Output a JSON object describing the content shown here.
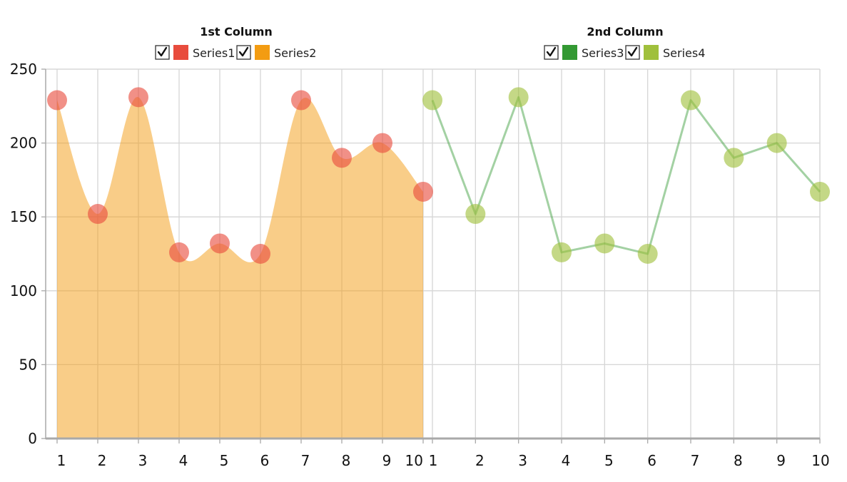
{
  "chart_data": {
    "type": "line",
    "title": "",
    "xlabel": "",
    "ylabel": "",
    "ylim": [
      0,
      250
    ],
    "yticks": [
      0,
      50,
      100,
      150,
      200,
      250
    ],
    "grid": true,
    "legend_placement": "top",
    "columns": [
      {
        "legend_title": "1st Column",
        "categories": [
          "1",
          "2",
          "3",
          "4",
          "5",
          "6",
          "7",
          "8",
          "9",
          "10"
        ],
        "series": [
          {
            "name": "Series1",
            "type": "scatter",
            "color": "#e84c3d",
            "checked": true,
            "values": [
              229,
              152,
              231,
              126,
              132,
              125,
              229,
              190,
              200,
              167
            ]
          },
          {
            "name": "Series2",
            "type": "area",
            "color": "#f39c12",
            "checked": true,
            "values": [
              229,
              152,
              231,
              126,
              132,
              125,
              229,
              190,
              200,
              167
            ]
          }
        ]
      },
      {
        "legend_title": "2nd Column",
        "categories": [
          "1",
          "2",
          "3",
          "4",
          "5",
          "6",
          "7",
          "8",
          "9",
          "10"
        ],
        "series": [
          {
            "name": "Series3",
            "type": "line",
            "color": "#339933",
            "checked": true,
            "values": [
              229,
              152,
              231,
              126,
              132,
              125,
              229,
              190,
              200,
              167
            ]
          },
          {
            "name": "Series4",
            "type": "scatter",
            "color": "#a0c03c",
            "checked": true,
            "values": [
              229,
              152,
              231,
              126,
              132,
              125,
              229,
              190,
              200,
              167
            ]
          }
        ]
      }
    ]
  }
}
